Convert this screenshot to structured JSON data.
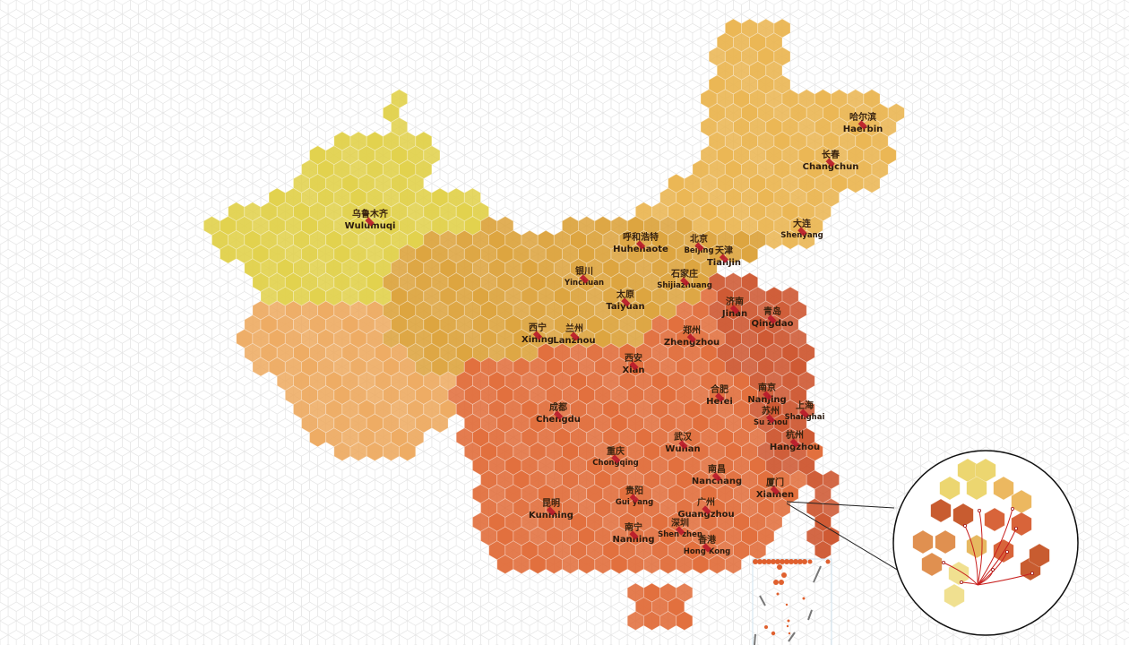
{
  "map": {
    "colors": {
      "xinjiang": "#e2d24e",
      "tibet": "#eeac64",
      "north": "#dda540",
      "northeast": "#ebb755",
      "south": "#e2703e",
      "east": "#cf5a34",
      "marker": "#b8182a",
      "grid": "#e6e6e6"
    },
    "cities": [
      {
        "zh": "乌鲁木齐",
        "en": "Wulumuqi"
      },
      {
        "zh": "哈尔滨",
        "en": "Haerbin"
      },
      {
        "zh": "长春",
        "en": "Changchun"
      },
      {
        "zh": "大连",
        "en": "Shenyang"
      },
      {
        "zh": "呼和浩特",
        "en": "Huhehaote"
      },
      {
        "zh": "北京",
        "en": "Beijing"
      },
      {
        "zh": "天津",
        "en": "Tianjin"
      },
      {
        "zh": "银川",
        "en": "Yinchuan"
      },
      {
        "zh": "石家庄",
        "en": "Shijiazhuang"
      },
      {
        "zh": "太原",
        "en": "Taiyuan"
      },
      {
        "zh": "济南",
        "en": "Jinan"
      },
      {
        "zh": "青岛",
        "en": "Qingdao"
      },
      {
        "zh": "西宁",
        "en": "Xining"
      },
      {
        "zh": "兰州",
        "en": "Lanzhou"
      },
      {
        "zh": "郑州",
        "en": "Zhengzhou"
      },
      {
        "zh": "西安",
        "en": "Xian"
      },
      {
        "zh": "合肥",
        "en": "Hefei"
      },
      {
        "zh": "南京",
        "en": "Nanjing"
      },
      {
        "zh": "苏州",
        "en": "Su zhou"
      },
      {
        "zh": "上海",
        "en": "Shanghai"
      },
      {
        "zh": "成都",
        "en": "Chengdu"
      },
      {
        "zh": "杭州",
        "en": "Hangzhou"
      },
      {
        "zh": "武汉",
        "en": "Wuhan"
      },
      {
        "zh": "重庆",
        "en": "Chongqing"
      },
      {
        "zh": "南昌",
        "en": "Nanchang"
      },
      {
        "zh": "厦门",
        "en": "Xiamen"
      },
      {
        "zh": "贵阳",
        "en": "Gui yang"
      },
      {
        "zh": "昆明",
        "en": "Kunming"
      },
      {
        "zh": "广州",
        "en": "Guangzhou"
      },
      {
        "zh": "深圳",
        "en": "Shen zhen"
      },
      {
        "zh": "南宁",
        "en": "Nanning"
      },
      {
        "zh": "香港",
        "en": "Hong Kong"
      }
    ]
  }
}
